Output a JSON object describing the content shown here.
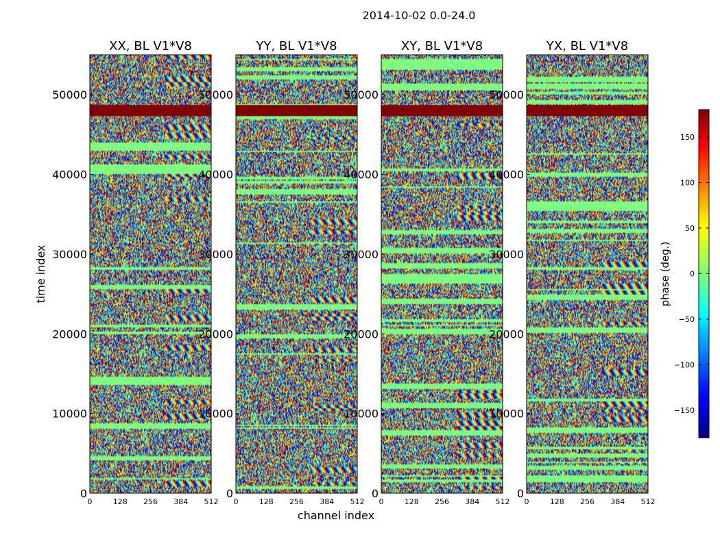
{
  "figure_title": "2014-10-02 0.0-24.0",
  "chart_data": {
    "type": "heatmap",
    "title": "2014-10-02 0.0-24.0",
    "xlabel": "channel index",
    "ylabel": "time index",
    "xlim": [
      0,
      512
    ],
    "ylim": [
      0,
      55000
    ],
    "xticks": [
      0,
      128,
      256,
      384,
      512
    ],
    "yticks": [
      0,
      10000,
      20000,
      30000,
      40000,
      50000
    ],
    "panels": [
      {
        "title": "XX, BL V1*V8"
      },
      {
        "title": "YY, BL V1*V8"
      },
      {
        "title": "XY, BL V1*V8"
      },
      {
        "title": "YX, BL V1*V8"
      }
    ],
    "colorbar": {
      "label": "phase (deg.)",
      "range": [
        -180,
        180
      ],
      "ticks": [
        -150,
        -100,
        -50,
        0,
        50,
        100,
        150
      ],
      "tick_labels": [
        "−150",
        "−100",
        "−50",
        "0",
        "50",
        "100",
        "150"
      ],
      "colormap": "jet"
    },
    "flagged_time_ranges": [
      {
        "from": 47300,
        "to": 48700,
        "phase": 180
      }
    ]
  }
}
